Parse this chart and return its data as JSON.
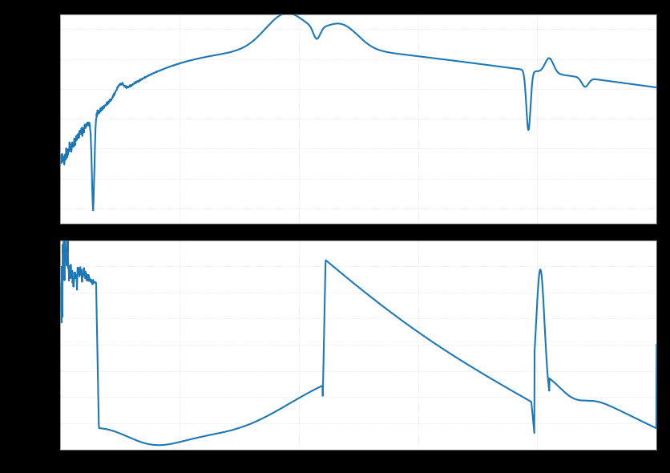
{
  "line_color": "#1f77b4",
  "line_width": 1.5,
  "background_color": "#000000",
  "plot_bg_color": "#ffffff",
  "grid_color": "#cccccc",
  "grid_linestyle": "dotted",
  "fig_width": 8.36,
  "fig_height": 5.9
}
